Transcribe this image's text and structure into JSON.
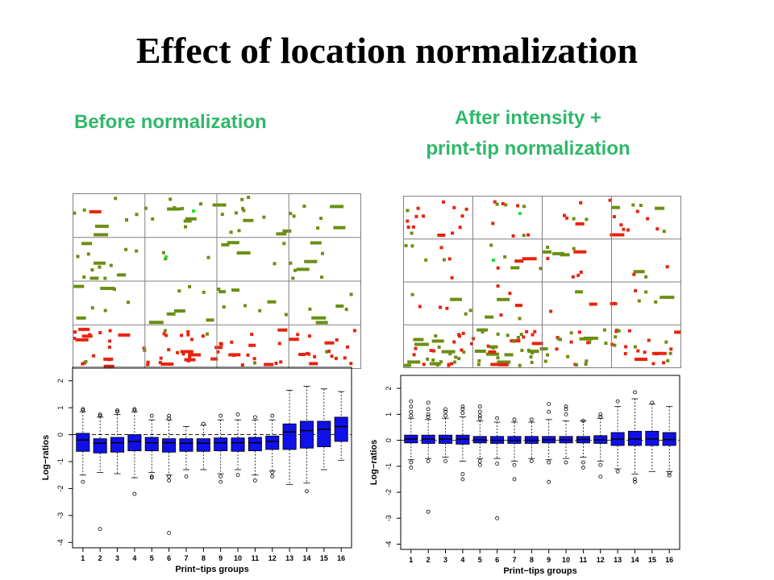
{
  "title": "Effect of location normalization",
  "labels": {
    "before": "Before normalization",
    "after_line1": "After intensity +",
    "after_line2": "print-tip normalization"
  },
  "colors": {
    "label_green": "#2fb86a",
    "spot_olive": "#6b8e12",
    "spot_red": "#e8230e",
    "spot_bright_green": "#22e43a",
    "box_blue": "#1010e8",
    "grid_gray": "#808080"
  },
  "chart_data": [
    {
      "type": "heatmap",
      "panel": "before",
      "grid": {
        "rows": 4,
        "cols": 4
      },
      "description_of_pattern": "olive spots scattered in upper tiles; red spots concentrated in bottom row of print-tips",
      "spot_colors": [
        "olive",
        "red",
        "bright-green"
      ]
    },
    {
      "type": "heatmap",
      "panel": "after",
      "grid": {
        "rows": 4,
        "cols": 4
      },
      "spot_colors": [
        "olive",
        "red",
        "bright-green"
      ]
    },
    {
      "type": "box",
      "panel": "before",
      "xlabel": "Print−tips groups",
      "ylabel": "Log−ratios",
      "categories": [
        "1",
        "2",
        "3",
        "4",
        "5",
        "6",
        "7",
        "8",
        "9",
        "10",
        "11",
        "12",
        "13",
        "14",
        "15",
        "16"
      ],
      "ylim": [
        -4.2,
        2.5
      ],
      "yticks": [
        2,
        1,
        0,
        -1,
        -2,
        -3,
        -4
      ],
      "boxes": [
        {
          "q1": -0.62,
          "median": -0.2,
          "q3": 0.05,
          "whislo": -1.5,
          "whishi": 0.85,
          "outliers": [
            0.95,
            0.9,
            -1.75
          ]
        },
        {
          "q1": -0.68,
          "median": -0.32,
          "q3": -0.15,
          "whislo": -1.4,
          "whishi": 0.65,
          "outliers": [
            0.75,
            0.7,
            -3.5
          ]
        },
        {
          "q1": -0.65,
          "median": -0.3,
          "q3": -0.1,
          "whislo": -1.45,
          "whishi": 0.75,
          "outliers": [
            0.85,
            0.9
          ]
        },
        {
          "q1": -0.6,
          "median": -0.25,
          "q3": 0.0,
          "whislo": -1.6,
          "whishi": 0.85,
          "outliers": [
            0.95,
            0.9,
            -2.2
          ]
        },
        {
          "q1": -0.6,
          "median": -0.3,
          "q3": -0.1,
          "whislo": -1.4,
          "whishi": 0.55,
          "outliers": [
            0.7,
            -1.55,
            -1.6
          ]
        },
        {
          "q1": -0.65,
          "median": -0.3,
          "q3": -0.15,
          "whislo": -1.5,
          "whishi": 0.55,
          "outliers": [
            0.7,
            0.6,
            -1.7,
            -1.55,
            -3.65
          ]
        },
        {
          "q1": -0.62,
          "median": -0.32,
          "q3": -0.15,
          "whislo": -1.3,
          "whishi": 0.3,
          "outliers": [
            -1.55
          ]
        },
        {
          "q1": -0.62,
          "median": -0.32,
          "q3": -0.15,
          "whislo": -1.3,
          "whishi": 0.35,
          "outliers": [
            0.4
          ]
        },
        {
          "q1": -0.6,
          "median": -0.3,
          "q3": -0.12,
          "whislo": -1.45,
          "whishi": 0.55,
          "outliers": [
            0.7,
            -1.55,
            -1.75
          ]
        },
        {
          "q1": -0.62,
          "median": -0.3,
          "q3": -0.12,
          "whislo": -1.3,
          "whishi": 0.55,
          "outliers": [
            0.75,
            -1.5
          ]
        },
        {
          "q1": -0.6,
          "median": -0.3,
          "q3": -0.1,
          "whislo": -1.5,
          "whishi": 0.55,
          "outliers": [
            0.65,
            -1.7
          ]
        },
        {
          "q1": -0.55,
          "median": -0.25,
          "q3": -0.05,
          "whislo": -1.35,
          "whishi": 0.55,
          "outliers": [
            0.7,
            -1.4,
            -1.55
          ]
        },
        {
          "q1": -0.55,
          "median": 0.1,
          "q3": 0.4,
          "whislo": -1.85,
          "whishi": 1.65,
          "outliers": []
        },
        {
          "q1": -0.5,
          "median": 0.15,
          "q3": 0.5,
          "whislo": -1.8,
          "whishi": 1.8,
          "outliers": [
            -2.1
          ]
        },
        {
          "q1": -0.45,
          "median": 0.2,
          "q3": 0.5,
          "whislo": -1.3,
          "whishi": 1.7,
          "outliers": []
        },
        {
          "q1": -0.25,
          "median": 0.3,
          "q3": 0.65,
          "whislo": -0.95,
          "whishi": 1.6,
          "outliers": []
        }
      ]
    },
    {
      "type": "box",
      "panel": "after",
      "xlabel": "Print−tips groups",
      "ylabel": "Log−ratios",
      "categories": [
        "1",
        "2",
        "3",
        "4",
        "5",
        "6",
        "7",
        "8",
        "9",
        "10",
        "11",
        "12",
        "13",
        "14",
        "15",
        "16"
      ],
      "ylim": [
        -4.2,
        2.5
      ],
      "yticks": [
        2,
        1,
        0,
        -1,
        -2,
        -3,
        -4
      ],
      "boxes": [
        {
          "q1": -0.1,
          "median": 0.05,
          "q3": 0.2,
          "whislo": -0.75,
          "whishi": 0.85,
          "outliers": [
            1.5,
            1.3,
            1.1,
            0.95,
            -0.85,
            -1.05
          ]
        },
        {
          "q1": -0.12,
          "median": 0.05,
          "q3": 0.2,
          "whislo": -0.7,
          "whishi": 0.8,
          "outliers": [
            1.45,
            1.2,
            1.0,
            0.9,
            -0.8,
            -2.75
          ]
        },
        {
          "q1": -0.12,
          "median": 0.05,
          "q3": 0.2,
          "whislo": -0.65,
          "whishi": 0.85,
          "outliers": [
            1.2,
            1.1,
            0.95,
            -0.8
          ]
        },
        {
          "q1": -0.15,
          "median": 0.05,
          "q3": 0.2,
          "whislo": -0.8,
          "whishi": 0.9,
          "outliers": [
            1.3,
            1.2,
            1.05,
            -1.3,
            -1.5
          ]
        },
        {
          "q1": -0.1,
          "median": 0.02,
          "q3": 0.15,
          "whislo": -0.7,
          "whishi": 0.75,
          "outliers": [
            1.3,
            1.1,
            0.95,
            0.85,
            -0.8,
            -0.95
          ]
        },
        {
          "q1": -0.12,
          "median": 0.0,
          "q3": 0.15,
          "whislo": -0.7,
          "whishi": 0.7,
          "outliers": [
            0.85,
            -0.9,
            -3.0
          ]
        },
        {
          "q1": -0.12,
          "median": 0.0,
          "q3": 0.15,
          "whislo": -0.8,
          "whishi": 0.7,
          "outliers": [
            0.8,
            -0.95,
            -1.5
          ]
        },
        {
          "q1": -0.12,
          "median": 0.0,
          "q3": 0.15,
          "whislo": -0.7,
          "whishi": 0.7,
          "outliers": [
            0.8,
            -0.8
          ]
        },
        {
          "q1": -0.1,
          "median": 0.02,
          "q3": 0.15,
          "whislo": -0.75,
          "whishi": 0.8,
          "outliers": [
            1.4,
            1.1,
            -0.85,
            -1.6
          ]
        },
        {
          "q1": -0.1,
          "median": 0.02,
          "q3": 0.15,
          "whislo": -0.7,
          "whishi": 0.75,
          "outliers": [
            1.3,
            1.2,
            1.0,
            -0.85
          ]
        },
        {
          "q1": -0.1,
          "median": 0.03,
          "q3": 0.15,
          "whislo": -0.65,
          "whishi": 0.75,
          "outliers": [
            0.75,
            -0.85,
            -1.05
          ]
        },
        {
          "q1": -0.12,
          "median": 0.02,
          "q3": 0.18,
          "whislo": -0.8,
          "whishi": 0.85,
          "outliers": [
            1.0,
            0.9,
            -0.95,
            -1.4
          ]
        },
        {
          "q1": -0.2,
          "median": 0.05,
          "q3": 0.3,
          "whislo": -1.1,
          "whishi": 1.3,
          "outliers": [
            1.5,
            -1.2
          ]
        },
        {
          "q1": -0.2,
          "median": 0.05,
          "q3": 0.35,
          "whislo": -1.3,
          "whishi": 1.6,
          "outliers": [
            1.85,
            -1.5,
            -1.6
          ]
        },
        {
          "q1": -0.2,
          "median": 0.05,
          "q3": 0.35,
          "whislo": -1.2,
          "whishi": 1.4,
          "outliers": [
            1.45
          ]
        },
        {
          "q1": -0.2,
          "median": 0.03,
          "q3": 0.3,
          "whislo": -1.2,
          "whishi": 1.3,
          "outliers": [
            -1.25,
            -1.35
          ]
        }
      ]
    }
  ]
}
